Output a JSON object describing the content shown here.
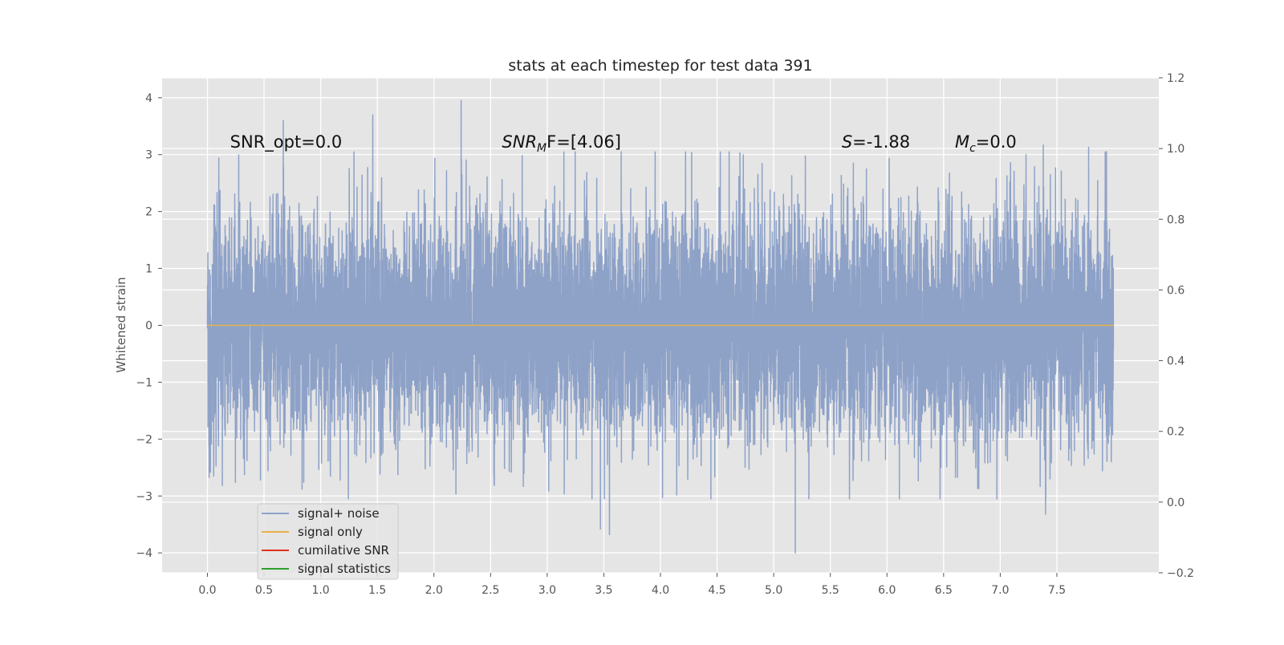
{
  "chart_data": {
    "type": "line",
    "title": "stats at each timestep for test data 391",
    "xlabel": "",
    "ylabel": "Whitened strain",
    "xlim": [
      -0.4,
      8.4
    ],
    "ylim": [
      -4.35,
      4.35
    ],
    "ylim_right": [
      -0.2,
      1.2
    ],
    "x_ticks": [
      0.0,
      0.5,
      1.0,
      1.5,
      2.0,
      2.5,
      3.0,
      3.5,
      4.0,
      4.5,
      5.0,
      5.5,
      6.0,
      6.5,
      7.0,
      7.5
    ],
    "x_tick_labels": [
      "0.0",
      "0.5",
      "1.0",
      "1.5",
      "2.0",
      "2.5",
      "3.0",
      "3.5",
      "4.0",
      "4.5",
      "5.0",
      "5.5",
      "6.0",
      "6.5",
      "7.0",
      "7.5"
    ],
    "y_ticks": [
      4,
      3,
      2,
      1,
      0,
      -1,
      -2,
      -3,
      -4
    ],
    "y_tick_labels": [
      "4",
      "3",
      "2",
      "1",
      "0",
      "−1",
      "−2",
      "−3",
      "−4"
    ],
    "y_right_ticks": [
      1.2,
      1.0,
      0.8,
      0.6,
      0.4,
      0.2,
      0.0,
      -0.2
    ],
    "y_right_tick_labels": [
      "1.2",
      "1.0",
      "0.8",
      "0.6",
      "0.4",
      "0.2",
      "0.0",
      "−0.2"
    ],
    "grid": true,
    "legend_position": "lower-left",
    "series": [
      {
        "name": "signal+ noise",
        "color": "#8ea2c8",
        "x_range": [
          0.0,
          8.0
        ],
        "sample_rate": 1024,
        "distribution": "whitened gaussian noise, std 1",
        "extremes": [
          {
            "x": 1.46,
            "y": 3.7
          },
          {
            "x": 2.24,
            "y": 3.95
          },
          {
            "x": 0.67,
            "y": 3.6
          },
          {
            "x": 5.19,
            "y": -4.0
          },
          {
            "x": 3.55,
            "y": -3.68
          },
          {
            "x": 3.47,
            "y": -3.58
          },
          {
            "x": 7.4,
            "y": -3.32
          },
          {
            "x": 7.38,
            "y": 3.17
          },
          {
            "x": 7.78,
            "y": 3.13
          }
        ]
      },
      {
        "name": "signal only",
        "color": "#e8b04a",
        "x": [
          0.0,
          8.0
        ],
        "y": [
          0.0,
          0.0
        ]
      },
      {
        "name": "cumilative SNR",
        "color": "#e0301e",
        "x": [],
        "y": []
      },
      {
        "name": "signal statistics",
        "color": "#2ca02c",
        "x": [],
        "y": []
      }
    ],
    "annotations": [
      {
        "text": "SNR_opt=0.0",
        "x": 0.2,
        "y": 3.12
      },
      {
        "text_main": "SNR",
        "text_sub": "M",
        "text_tail": "F=[4.06]",
        "x": 2.6,
        "y": 3.12
      },
      {
        "text_main": "S",
        "text_tail": "=-1.88",
        "x": 5.6,
        "y": 3.12
      },
      {
        "text_main": "M",
        "text_sub": "c",
        "text_tail": "=0.0",
        "x": 6.6,
        "y": 3.12
      }
    ]
  },
  "colors": {
    "plot_bg": "#e5e5e5",
    "grid": "#ffffff",
    "axis_text": "#555555"
  }
}
